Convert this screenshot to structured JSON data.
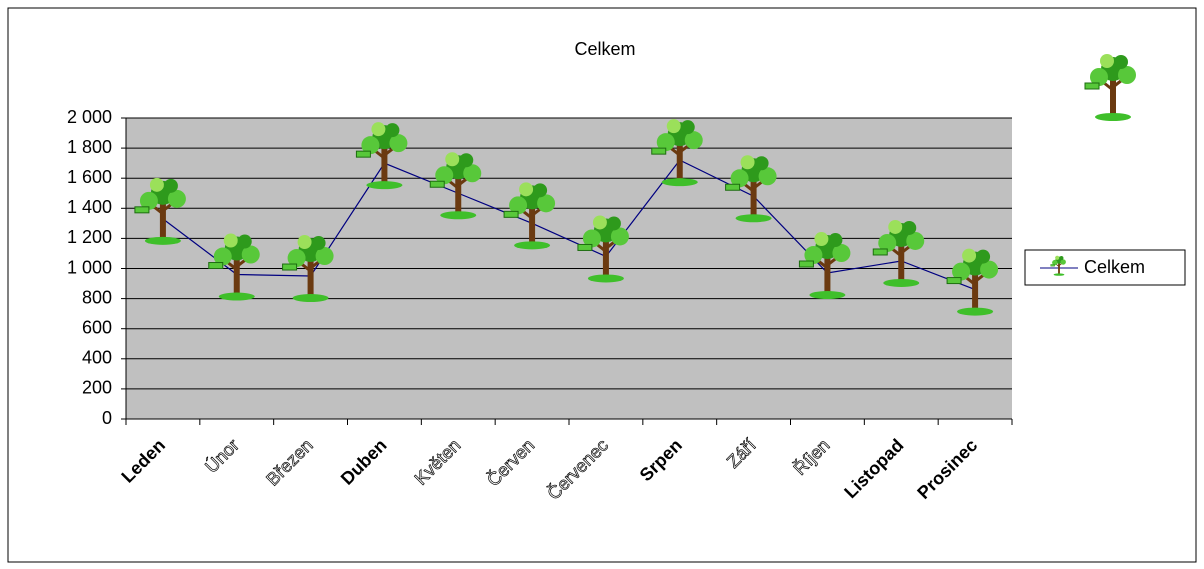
{
  "chart_data": {
    "type": "line",
    "title": "Celkem",
    "categories": [
      "Leden",
      "Únor",
      "Březen",
      "Duben",
      "Květen",
      "Červen",
      "Červenec",
      "Srpen",
      "Září",
      "Říjen",
      "Listopad",
      "Prosinec"
    ],
    "series": [
      {
        "name": "Celkem",
        "color": "#000080",
        "values": [
          1330,
          960,
          950,
          1700,
          1500,
          1300,
          1080,
          1720,
          1480,
          970,
          1050,
          860
        ]
      }
    ],
    "ylim": [
      0,
      2000
    ],
    "yticks": [
      0,
      200,
      400,
      600,
      800,
      {
        "value": 1000,
        "label": "1 000"
      },
      {
        "value": 1200,
        "label": "1 200"
      },
      {
        "value": 1400,
        "label": "1 400"
      },
      {
        "value": 1600,
        "label": "1 600"
      },
      {
        "value": 1800,
        "label": "1 800"
      },
      {
        "value": 2000,
        "label": "2 000"
      }
    ],
    "grid": true,
    "legend": "right"
  }
}
